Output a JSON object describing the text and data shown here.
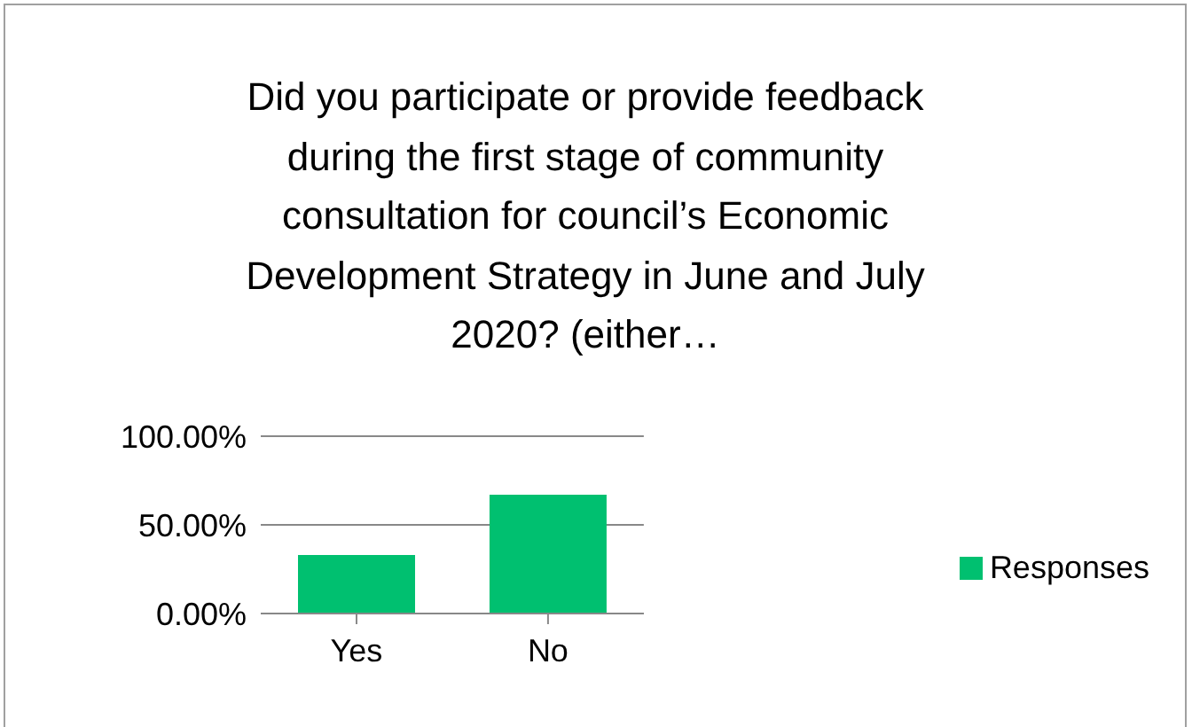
{
  "chart_data": {
    "type": "bar",
    "title": "Did you participate or provide feedback during the first stage of community consultation for council’s Economic Development Strategy in June and July 2020? (either…",
    "categories": [
      "Yes",
      "No"
    ],
    "series": [
      {
        "name": "Responses",
        "color": "#00c070",
        "values": [
          33,
          67
        ]
      }
    ],
    "ylim": [
      0,
      100
    ],
    "yticks": [
      {
        "value": 0,
        "label": "0.00%"
      },
      {
        "value": 50,
        "label": "50.00%"
      },
      {
        "value": 100,
        "label": "100.00%"
      }
    ],
    "grid": "y",
    "legend": "right"
  }
}
